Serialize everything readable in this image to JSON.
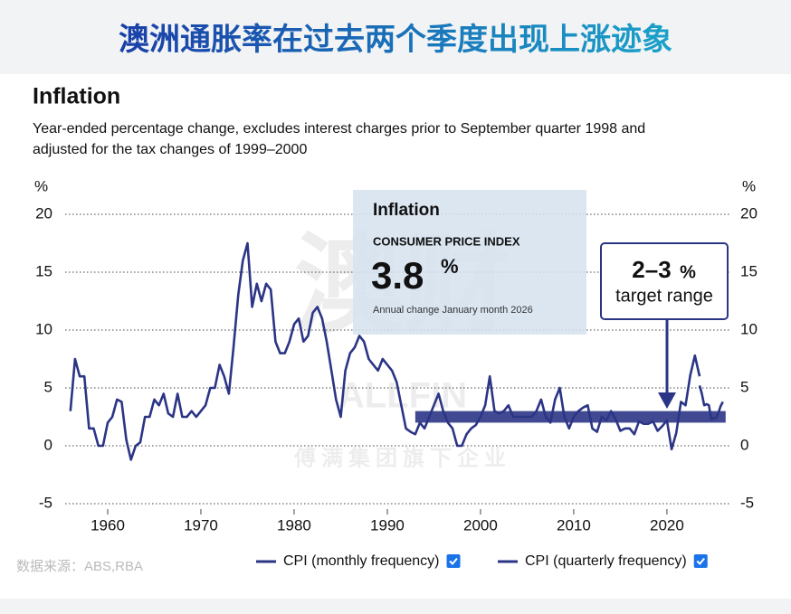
{
  "banner_title": "澳洲通胀率在过去两个季度出现上涨迹象",
  "source": "数据来源：ABS,RBA",
  "watermark": {
    "logo": "澳财",
    "brand": "ALLFIN",
    "tagline": "傅满集团旗下企业"
  },
  "chart_data": {
    "type": "line",
    "title": "Inflation",
    "subtitle": [
      "Year-ended percentage change, excludes interest charges prior to September quarter 1998 and",
      "adjusted for the tax changes of 1999–2000"
    ],
    "y_unit": "%",
    "y2_unit": "%",
    "xlim": [
      1955,
      2027
    ],
    "xticks": [
      1960,
      1970,
      1980,
      1990,
      2000,
      2010,
      2020
    ],
    "ylim": [
      -5,
      20
    ],
    "yticks": [
      -5,
      0,
      5,
      10,
      15,
      20
    ],
    "y2lim": [
      -5,
      20
    ],
    "y2ticks": [
      -5,
      0,
      5,
      10,
      15,
      20
    ],
    "grid": true,
    "series": [
      {
        "name": "CPI (monthly frequency)",
        "color": "#2b3585",
        "x": [
          2023.5,
          2023.75,
          2024,
          2024.25,
          2024.5,
          2024.75,
          2025,
          2025.25,
          2025.5,
          2025.75,
          2026
        ],
        "values": [
          5.2,
          4.5,
          3.5,
          3.6,
          3.5,
          2.3,
          2.4,
          2.4,
          2.8,
          3.4,
          3.8
        ]
      },
      {
        "name": "CPI (quarterly frequency)",
        "color": "#2b3585",
        "x": [
          1956,
          1956.5,
          1957,
          1957.5,
          1958,
          1958.5,
          1959,
          1959.5,
          1960,
          1960.5,
          1961,
          1961.5,
          1962,
          1962.5,
          1963,
          1963.5,
          1964,
          1964.5,
          1965,
          1965.5,
          1966,
          1966.5,
          1967,
          1967.5,
          1968,
          1968.5,
          1969,
          1969.5,
          1970,
          1970.5,
          1971,
          1971.5,
          1972,
          1972.5,
          1973,
          1973.5,
          1974,
          1974.5,
          1975,
          1975.5,
          1976,
          1976.5,
          1977,
          1977.5,
          1978,
          1978.5,
          1979,
          1979.5,
          1980,
          1980.5,
          1981,
          1981.5,
          1982,
          1982.5,
          1983,
          1983.5,
          1984,
          1984.5,
          1985,
          1985.5,
          1986,
          1986.5,
          1987,
          1987.5,
          1988,
          1988.5,
          1989,
          1989.5,
          1990,
          1990.5,
          1991,
          1991.5,
          1992,
          1992.5,
          1993,
          1993.5,
          1994,
          1994.5,
          1995,
          1995.5,
          1996,
          1996.5,
          1997,
          1997.5,
          1998,
          1998.5,
          1999,
          1999.5,
          2000,
          2000.5,
          2001,
          2001.5,
          2002,
          2002.5,
          2003,
          2003.5,
          2004,
          2004.5,
          2005,
          2005.5,
          2006,
          2006.5,
          2007,
          2007.5,
          2008,
          2008.5,
          2009,
          2009.5,
          2010,
          2010.5,
          2011,
          2011.5,
          2012,
          2012.5,
          2013,
          2013.5,
          2014,
          2014.5,
          2015,
          2015.5,
          2016,
          2016.5,
          2017,
          2017.5,
          2018,
          2018.5,
          2019,
          2019.5,
          2020,
          2020.5,
          2021,
          2021.5,
          2022,
          2022.5,
          2023,
          2023.5
        ],
        "values": [
          3,
          7.5,
          6,
          6,
          1.5,
          1.5,
          0,
          0,
          2,
          2.5,
          4,
          3.8,
          0.5,
          -1.2,
          0,
          0.3,
          2.5,
          2.5,
          4,
          3.5,
          4.5,
          2.8,
          2.5,
          4.5,
          2.5,
          2.5,
          3,
          2.5,
          3,
          3.5,
          5,
          5,
          7,
          6,
          4.5,
          8.5,
          13,
          16,
          17.5,
          12,
          14,
          12.5,
          14,
          13.5,
          9,
          8,
          8,
          9,
          10.5,
          11,
          9,
          9.5,
          11.5,
          12,
          11,
          9,
          6.5,
          4,
          2.5,
          6.5,
          8,
          8.5,
          9.5,
          9,
          7.5,
          7,
          6.5,
          7.5,
          7,
          6.5,
          5.5,
          3.5,
          1.5,
          1.2,
          1,
          2,
          1.5,
          2.5,
          3.5,
          4.5,
          3,
          2,
          1.5,
          0,
          0,
          1,
          1.5,
          1.8,
          2.5,
          3.5,
          6,
          3,
          2.8,
          3,
          3.5,
          2.5,
          2.5,
          2.5,
          2.5,
          2.5,
          3,
          4,
          2.5,
          2,
          4,
          5,
          2.5,
          1.5,
          2.5,
          3,
          3.3,
          3.5,
          1.5,
          1.2,
          2.5,
          2.2,
          3,
          2.3,
          1.3,
          1.5,
          1.5,
          1,
          2.1,
          1.9,
          1.9,
          2.1,
          1.3,
          1.7,
          2.2,
          -0.3,
          1.1,
          3.8,
          3.5,
          6.1,
          7.8,
          6
        ]
      }
    ],
    "target_band": {
      "low": 2,
      "high": 3,
      "x_range": [
        1993,
        2026.3
      ],
      "callout_value": "2–3",
      "callout_unit": "%",
      "callout_label": "target range"
    },
    "inset": {
      "title": "Inflation",
      "label": "CONSUMER PRICE INDEX",
      "value": "3.8",
      "unit": "%",
      "note": "Annual change January month 2026"
    }
  }
}
